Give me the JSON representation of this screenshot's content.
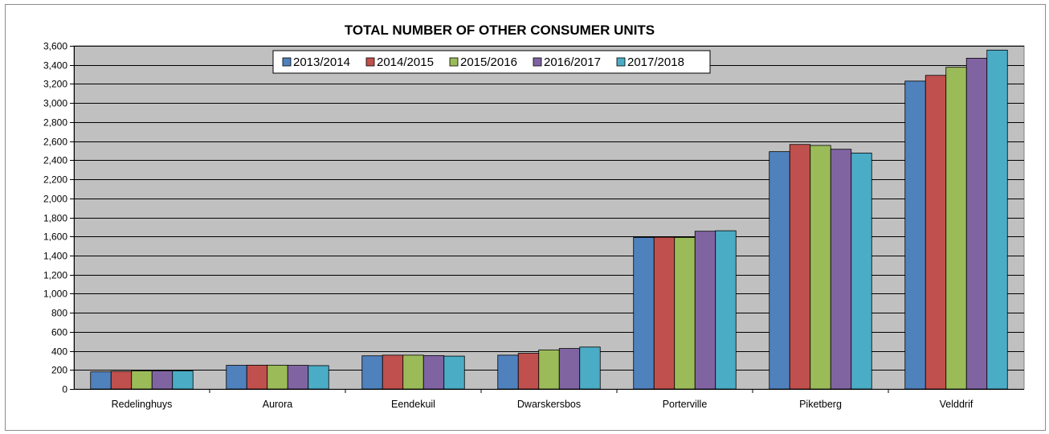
{
  "chart_data": {
    "type": "bar",
    "title": "TOTAL NUMBER OF OTHER CONSUMER UNITS",
    "xlabel": "",
    "ylabel": "",
    "ylim": [
      0,
      3600
    ],
    "yticks": [
      "0",
      "200",
      "400",
      "600",
      "800",
      "1,000",
      "1,200",
      "1,400",
      "1,600",
      "1,800",
      "2,000",
      "2,200",
      "2,400",
      "2,600",
      "2,800",
      "3,000",
      "3,200",
      "3,400",
      "3,600"
    ],
    "grid": true,
    "legend_position": "top",
    "plot_background": "#c0c0c0",
    "categories": [
      "Redelinghuys",
      "Aurora",
      "Eendekuil",
      "Dwarskersbos",
      "Porterville",
      "Piketberg",
      "Velddrif"
    ],
    "series": [
      {
        "name": "2013/2014",
        "color": "#4f81bd",
        "values": [
          180,
          248,
          348,
          355,
          1590,
          2490,
          3230
        ]
      },
      {
        "name": "2014/2015",
        "color": "#c0504d",
        "values": [
          185,
          250,
          355,
          375,
          1592,
          2565,
          3290
        ]
      },
      {
        "name": "2015/2016",
        "color": "#9bbb59",
        "values": [
          190,
          250,
          355,
          410,
          1590,
          2555,
          3375
        ]
      },
      {
        "name": "2016/2017",
        "color": "#8064a2",
        "values": [
          190,
          248,
          350,
          425,
          1655,
          2515,
          3470
        ]
      },
      {
        "name": "2017/2018",
        "color": "#4bacc6",
        "values": [
          190,
          245,
          345,
          440,
          1660,
          2475,
          3555
        ]
      }
    ]
  }
}
